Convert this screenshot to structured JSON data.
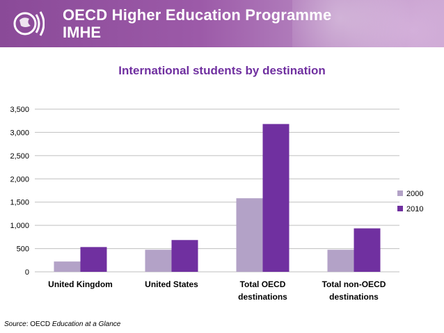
{
  "header": {
    "title": "OECD Higher Education Programme",
    "subtitle": "IMHE"
  },
  "source": {
    "label": "Source",
    "separator": ": OECD ",
    "text": "Education at a Glance"
  },
  "colors": {
    "series_2000": "#b3a2c7",
    "series_2010": "#7030a0",
    "title": "#7030a0",
    "grid": "#bfbfbf"
  },
  "chart_data": {
    "type": "bar",
    "title": "International students by destination",
    "xlabel": "",
    "ylabel": "",
    "ylim": [
      0,
      3500
    ],
    "yticks": [
      "0",
      "500",
      "1,000",
      "1,500",
      "2,000",
      "2,500",
      "3,000",
      "3,500"
    ],
    "grid": true,
    "legend_position": "right",
    "categories": [
      [
        "United Kingdom"
      ],
      [
        "United States"
      ],
      [
        "Total OECD",
        "destinations"
      ],
      [
        "Total non-OECD",
        "destinations"
      ]
    ],
    "series": [
      {
        "name": "2000",
        "values": [
          222,
          475,
          1583,
          475
        ]
      },
      {
        "name": "2010",
        "values": [
          533,
          684,
          3180,
          935
        ]
      }
    ]
  }
}
